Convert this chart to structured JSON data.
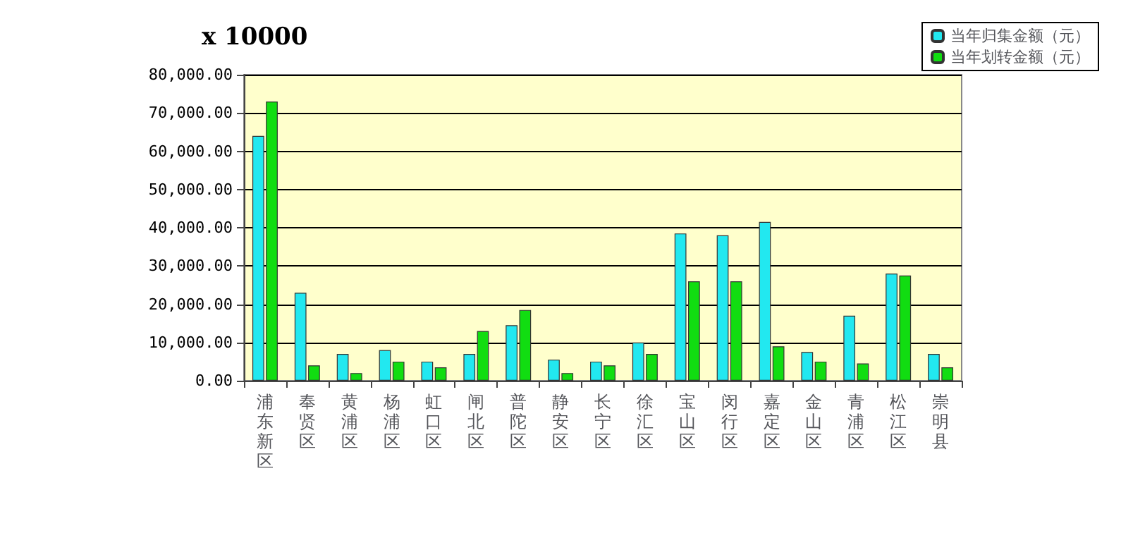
{
  "chart_data": {
    "type": "bar",
    "annotations": [
      "x 10000"
    ],
    "categories": [
      "浦东新区",
      "奉贤区",
      "黄浦区",
      "杨浦区",
      "虹口区",
      "闸北区",
      "普陀区",
      "静安区",
      "长宁区",
      "徐汇区",
      "宝山区",
      "闵行区",
      "嘉定区",
      "金山区",
      "青浦区",
      "松江区",
      "崇明县"
    ],
    "series": [
      {
        "name": "当年归集金额（元）",
        "color": "#22e8f0",
        "values": [
          64000,
          23000,
          7000,
          8000,
          5000,
          7000,
          14500,
          5500,
          5000,
          10000,
          38500,
          38000,
          41500,
          7500,
          17000,
          28000,
          7000
        ]
      },
      {
        "name": "当年划转金额（元）",
        "color": "#11dd11",
        "values": [
          73000,
          4000,
          2000,
          5000,
          3500,
          13000,
          18500,
          2000,
          4000,
          7000,
          26000,
          26000,
          9000,
          5000,
          4500,
          27500,
          3500
        ]
      }
    ],
    "ylim": [
      0,
      80000
    ],
    "yticks": [
      {
        "value": 0,
        "label": "0.00"
      },
      {
        "value": 10000,
        "label": "10,000.00"
      },
      {
        "value": 20000,
        "label": "20,000.00"
      },
      {
        "value": 30000,
        "label": "30,000.00"
      },
      {
        "value": 40000,
        "label": "40,000.00"
      },
      {
        "value": 50000,
        "label": "50,000.00"
      },
      {
        "value": 60000,
        "label": "60,000.00"
      },
      {
        "value": 70000,
        "label": "70,000.00"
      },
      {
        "value": 80000,
        "label": "80,000.00"
      }
    ],
    "grid": "y",
    "legend": "top right"
  }
}
